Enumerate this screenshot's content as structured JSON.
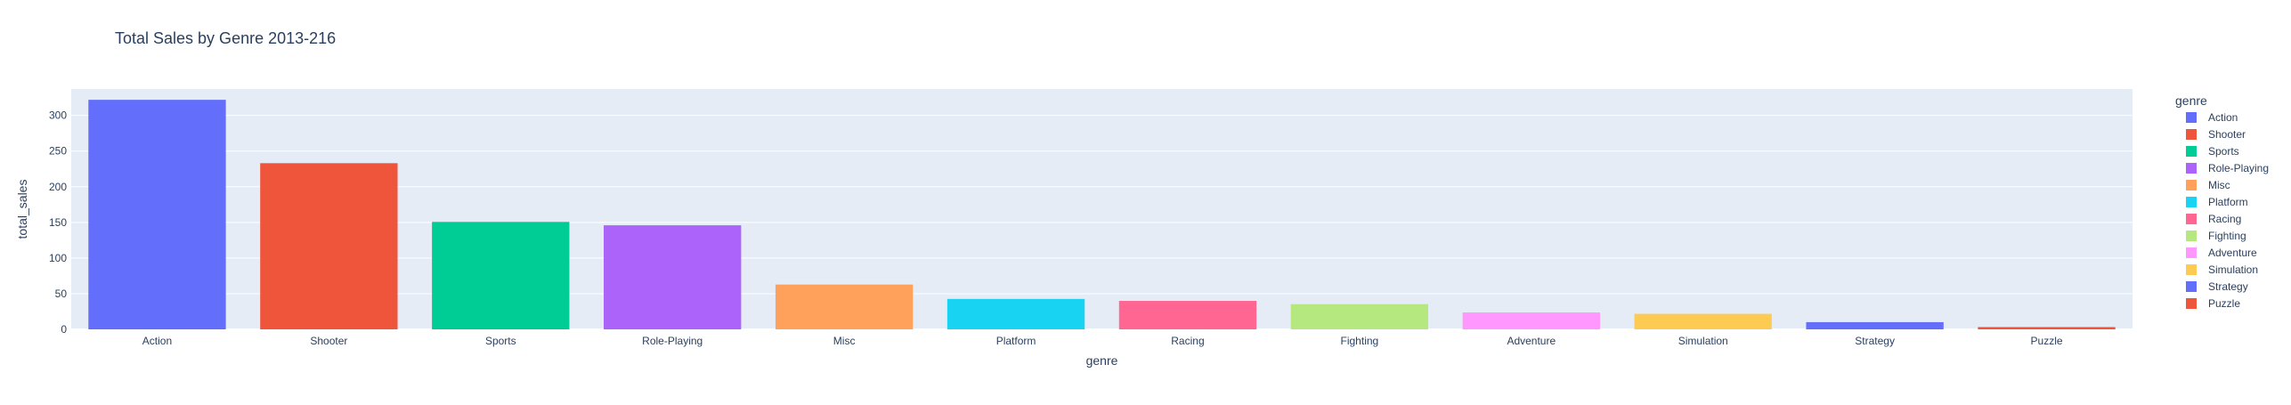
{
  "chart_data": {
    "type": "bar",
    "title": "Total Sales by Genre 2013-216",
    "xlabel": "genre",
    "ylabel": "total_sales",
    "legend_title": "genre",
    "legend_position": "right",
    "grid": true,
    "ylim": [
      0,
      337
    ],
    "yticks": [
      0,
      50,
      100,
      150,
      200,
      250,
      300
    ],
    "categories": [
      "Action",
      "Shooter",
      "Sports",
      "Role-Playing",
      "Misc",
      "Platform",
      "Racing",
      "Fighting",
      "Adventure",
      "Simulation",
      "Strategy",
      "Puzzle"
    ],
    "values": [
      321.87,
      232.98,
      150.65,
      145.89,
      62.82,
      42.63,
      39.89,
      35.31,
      23.64,
      21.76,
      10.08,
      3.17
    ],
    "colors": [
      "#636efa",
      "#EF553B",
      "#00cc96",
      "#ab63fa",
      "#FFA15A",
      "#19d3f3",
      "#FF6692",
      "#B6E880",
      "#FF97FF",
      "#FECB52",
      "#636efa",
      "#EF553B"
    ]
  }
}
